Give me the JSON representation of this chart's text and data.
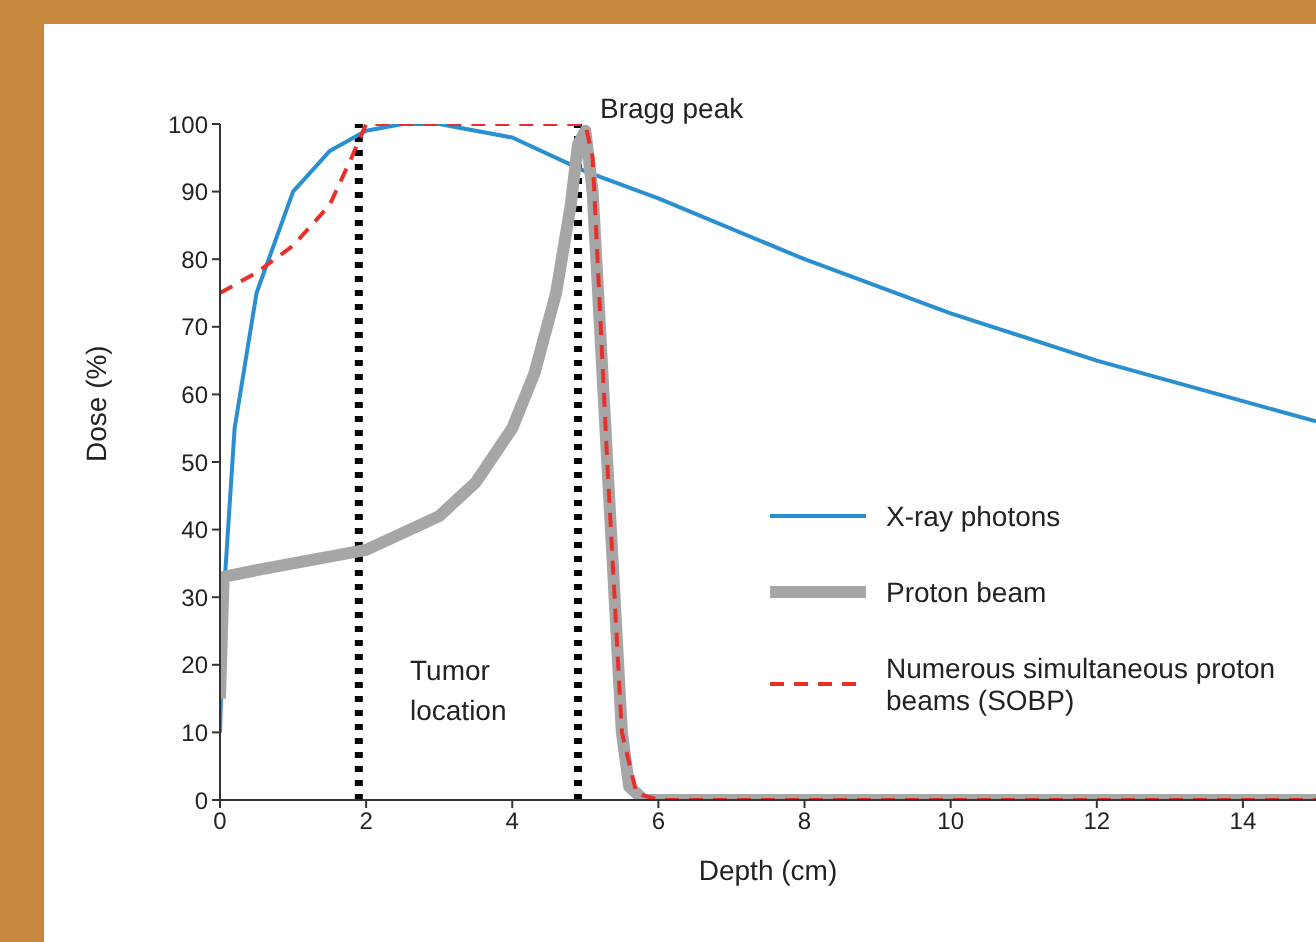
{
  "chart_data": {
    "type": "line",
    "xlabel": "Depth (cm)",
    "ylabel": "Dose (%)",
    "xlim": [
      0,
      15
    ],
    "xticks": [
      0,
      2,
      4,
      6,
      8,
      10,
      12,
      14
    ],
    "ylim": [
      0,
      100
    ],
    "yticks": [
      0,
      10,
      20,
      30,
      40,
      50,
      60,
      70,
      80,
      90,
      100
    ],
    "grid": false,
    "legend": "right",
    "marker": "none",
    "series": [
      {
        "name": "X-ray photons",
        "color": "#2a8fd0",
        "line_style": "solid",
        "x": [
          0,
          0.05,
          0.2,
          0.5,
          1,
          1.5,
          2,
          2.5,
          3,
          4,
          5,
          6,
          8,
          10,
          12,
          14,
          15
        ],
        "values": [
          10,
          30,
          55,
          75,
          90,
          96,
          99,
          100,
          100,
          98,
          93,
          89,
          80,
          72,
          65,
          59,
          56
        ]
      },
      {
        "name": "Proton beam",
        "color": "#a6a6a6",
        "line_style": "solid",
        "x": [
          0,
          0.05,
          0.5,
          1,
          2,
          3,
          3.5,
          4,
          4.3,
          4.6,
          4.8,
          4.9,
          5,
          5.1,
          5.3,
          5.5,
          5.6,
          5.8,
          15
        ],
        "values": [
          15,
          33,
          34,
          35,
          37,
          42,
          47,
          55,
          63,
          75,
          88,
          97,
          99,
          90,
          50,
          10,
          2,
          0,
          0
        ]
      },
      {
        "name": "Numerous simultaneous proton beams (SOBP)",
        "color": "#e8302a",
        "line_style": "dashed",
        "x": [
          0,
          0.5,
          1,
          1.5,
          1.8,
          2,
          5,
          5.1,
          5.3,
          5.5,
          5.7,
          6,
          15
        ],
        "values": [
          75,
          78,
          82,
          88,
          95,
          100,
          100,
          95,
          50,
          10,
          1,
          0,
          0
        ]
      }
    ],
    "ref_lines": [
      {
        "axis": "x",
        "value": 1.9,
        "color": "#000000",
        "line_style": "dotted"
      },
      {
        "axis": "x",
        "value": 4.9,
        "color": "#000000",
        "line_style": "dotted"
      }
    ],
    "annotations": [
      "Bragg peak",
      "Tumor location"
    ]
  }
}
